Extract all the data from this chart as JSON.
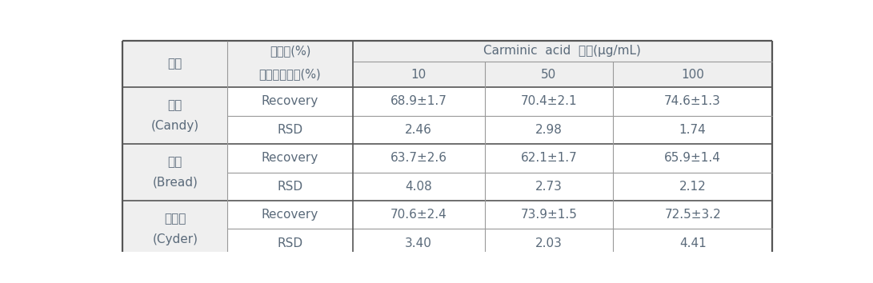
{
  "col1_label": "식품",
  "col2_label_top": "회수율(%)",
  "col2_label_bottom": "상대표준편차(%)",
  "col3_header": "Carminic  acid  농도(μg/mL)",
  "concentrations": [
    "10",
    "50",
    "100"
  ],
  "foods": [
    {
      "korean": "사탕",
      "english": "(Candy)"
    },
    {
      "korean": "식빵",
      "english": "(Bread)"
    },
    {
      "korean": "사이다",
      "english": "(Cyder)"
    }
  ],
  "data": [
    {
      "recovery": [
        "68.9±1.7",
        "70.4±2.1",
        "74.6±1.3"
      ],
      "rsd": [
        "2.46",
        "2.98",
        "1.74"
      ]
    },
    {
      "recovery": [
        "63.7±2.6",
        "62.1±1.7",
        "65.9±1.4"
      ],
      "rsd": [
        "4.08",
        "2.73",
        "2.12"
      ]
    },
    {
      "recovery": [
        "70.6±2.4",
        "73.9±1.5",
        "72.5±3.2"
      ],
      "rsd": [
        "3.40",
        "2.03",
        "4.41"
      ]
    }
  ],
  "bg_color_header": "#efefef",
  "bg_color_data": "#ffffff",
  "text_color": "#5a6a7a",
  "border_color_outer": "#555555",
  "border_color_inner": "#999999",
  "font_size": 11,
  "fig_width": 10.91,
  "fig_height": 3.54,
  "dpi": 100
}
